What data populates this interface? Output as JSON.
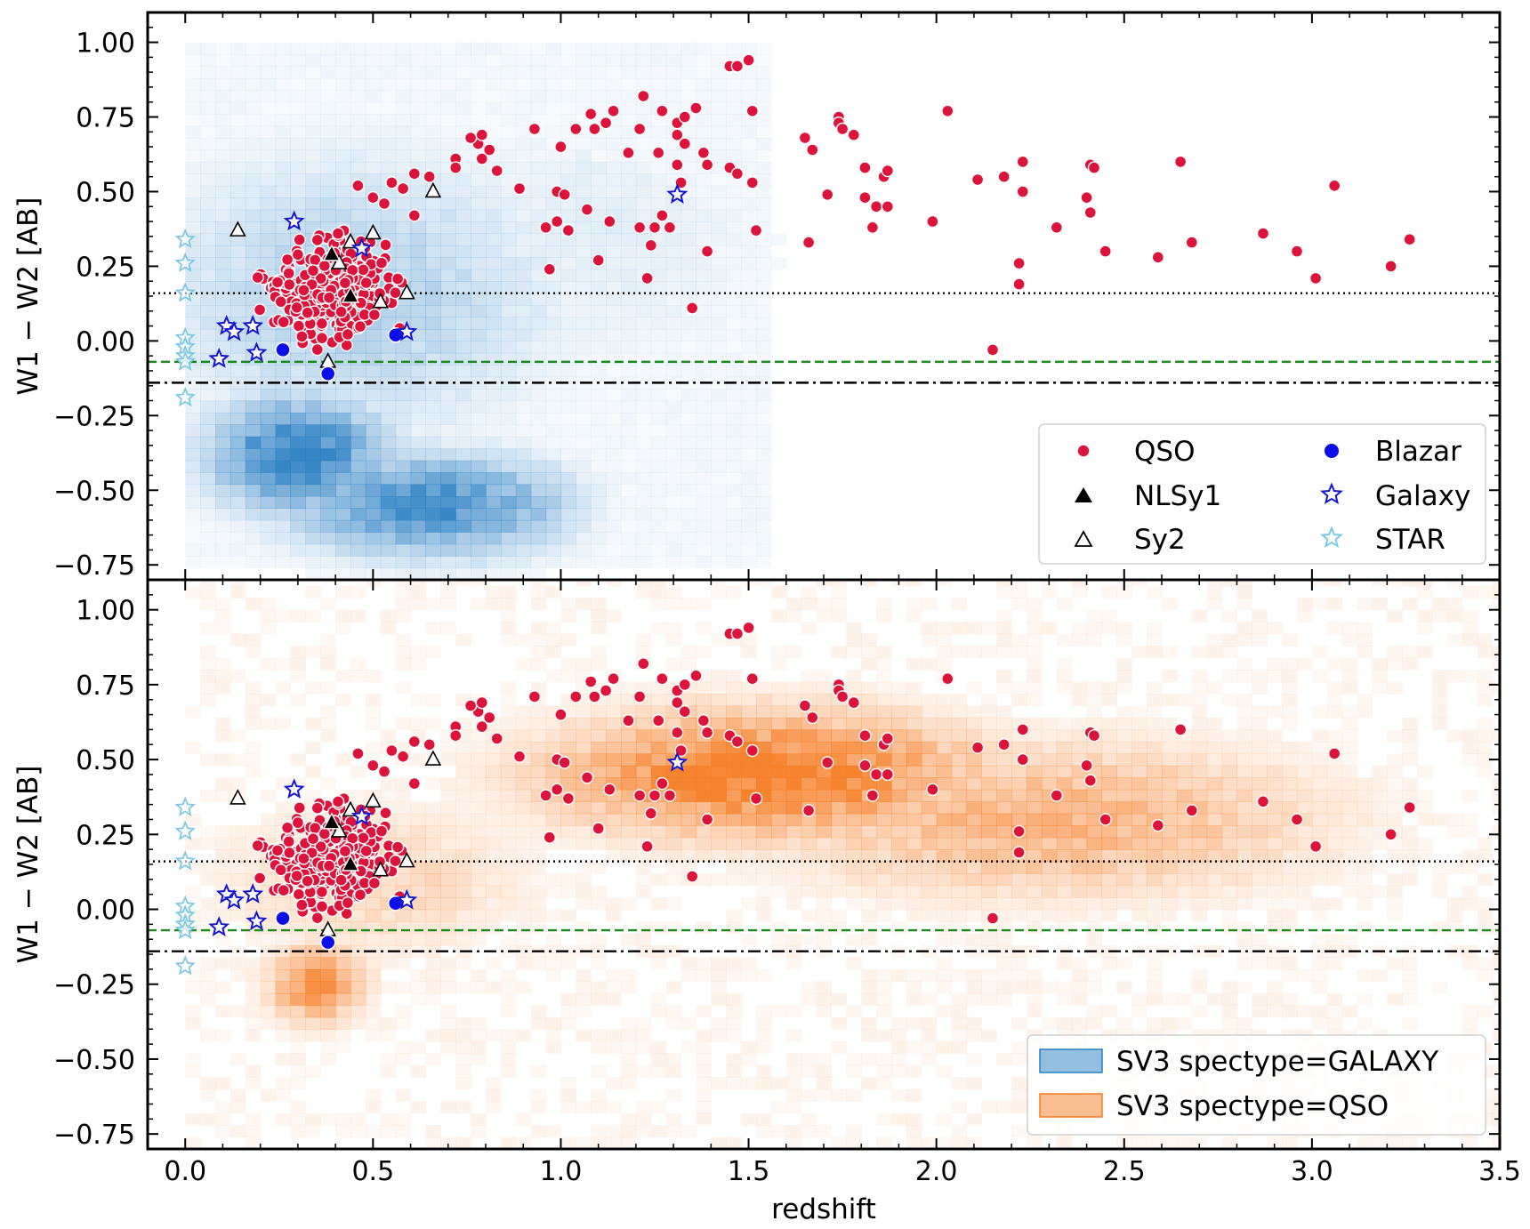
{
  "colors": {
    "galaxy_hist": "#2a7fc2",
    "qso_hist": "#f57d24",
    "qso_point": "#dc143c",
    "blazar": "#0b0ee8",
    "galaxy_star": "#1414d4",
    "star": "#7ec8e3",
    "green_line": "#1a8a1a"
  },
  "chart_data": [
    {
      "type": "scatter",
      "panel": "top",
      "background": "2D histogram of SV3 spectype=GALAXY",
      "xlim": [
        -0.1,
        3.5
      ],
      "ylim": [
        -0.8,
        1.1
      ],
      "xticks": [
        "0.0",
        "0.5",
        "1.0",
        "1.5",
        "2.0",
        "2.5",
        "3.0",
        "3.5"
      ],
      "yticks": [
        "1.00",
        "0.75",
        "0.50",
        "0.25",
        "0.00",
        "−0.25",
        "−0.50",
        "−0.75"
      ],
      "ylabel": "W1 − W2 [AB]",
      "reference_lines": [
        {
          "style": "dotted",
          "y": 0.16
        },
        {
          "style": "dashed",
          "y": -0.07
        },
        {
          "style": "dashdot",
          "y": -0.14
        }
      ],
      "legend": {
        "placement": "lower-right",
        "entries": [
          {
            "label": "QSO",
            "marker": "circle-red"
          },
          {
            "label": "Blazar",
            "marker": "circle-blue"
          },
          {
            "label": "NLSy1",
            "marker": "triangle-filled"
          },
          {
            "label": "Galaxy",
            "marker": "star-blue"
          },
          {
            "label": "Sy2",
            "marker": "triangle-open"
          },
          {
            "label": "STAR",
            "marker": "star-cyan"
          }
        ]
      }
    },
    {
      "type": "scatter",
      "panel": "bottom",
      "background": "2D histogram of SV3 spectype=QSO",
      "xlim": [
        -0.1,
        3.5
      ],
      "ylim": [
        -0.8,
        1.1
      ],
      "xticks": [
        "0.0",
        "0.5",
        "1.0",
        "1.5",
        "2.0",
        "2.5",
        "3.0",
        "3.5"
      ],
      "yticks": [
        "1.00",
        "0.75",
        "0.50",
        "0.25",
        "0.00",
        "−0.25",
        "−0.50",
        "−0.75"
      ],
      "xlabel": "redshift",
      "ylabel": "W1 − W2 [AB]",
      "reference_lines": [
        {
          "style": "dotted",
          "y": 0.16
        },
        {
          "style": "dashed",
          "y": -0.07
        },
        {
          "style": "dashdot",
          "y": -0.14
        }
      ],
      "legend": {
        "placement": "lower-right",
        "entries": [
          {
            "label": "SV3 spectype=GALAXY",
            "patch": "blue"
          },
          {
            "label": "SV3 spectype=QSO",
            "patch": "orange"
          }
        ]
      }
    }
  ],
  "points": {
    "qso_far": [
      [
        1.45,
        0.92
      ],
      [
        1.47,
        0.92
      ],
      [
        1.5,
        0.94
      ],
      [
        1.22,
        0.82
      ],
      [
        1.51,
        0.77
      ],
      [
        1.67,
        0.64
      ],
      [
        1.65,
        0.68
      ],
      [
        1.74,
        0.75
      ],
      [
        1.74,
        0.73
      ],
      [
        1.75,
        0.71
      ],
      [
        1.78,
        0.69
      ],
      [
        2.03,
        0.77
      ],
      [
        1.71,
        0.49
      ],
      [
        1.81,
        0.58
      ],
      [
        1.81,
        0.48
      ],
      [
        1.84,
        0.45
      ],
      [
        1.86,
        0.55
      ],
      [
        1.87,
        0.57
      ],
      [
        1.87,
        0.45
      ],
      [
        2.11,
        0.54
      ],
      [
        2.18,
        0.55
      ],
      [
        2.23,
        0.6
      ],
      [
        2.23,
        0.5
      ],
      [
        2.41,
        0.59
      ],
      [
        2.42,
        0.58
      ],
      [
        2.4,
        0.48
      ],
      [
        2.41,
        0.43
      ],
      [
        2.65,
        0.6
      ],
      [
        3.06,
        0.52
      ],
      [
        1.51,
        0.53
      ],
      [
        1.66,
        0.33
      ],
      [
        1.83,
        0.38
      ],
      [
        1.99,
        0.4
      ],
      [
        2.32,
        0.38
      ],
      [
        2.22,
        0.26
      ],
      [
        2.22,
        0.19
      ],
      [
        2.45,
        0.3
      ],
      [
        2.59,
        0.28
      ],
      [
        2.68,
        0.33
      ],
      [
        2.87,
        0.36
      ],
      [
        2.96,
        0.3
      ],
      [
        3.01,
        0.21
      ],
      [
        3.21,
        0.25
      ],
      [
        3.26,
        0.34
      ],
      [
        1.52,
        0.37
      ],
      [
        2.15,
        -0.03
      ],
      [
        1.35,
        0.11
      ],
      [
        1.12,
        0.73
      ],
      [
        1.21,
        0.71
      ],
      [
        1.14,
        0.77
      ],
      [
        1.27,
        0.77
      ],
      [
        1.31,
        0.73
      ],
      [
        1.33,
        0.75
      ],
      [
        1.36,
        0.78
      ],
      [
        1.08,
        0.76
      ],
      [
        1.09,
        0.71
      ],
      [
        1.31,
        0.69
      ],
      [
        1.04,
        0.71
      ],
      [
        1.18,
        0.63
      ],
      [
        1.26,
        0.63
      ],
      [
        1.33,
        0.66
      ],
      [
        1.38,
        0.63
      ],
      [
        1.31,
        0.59
      ],
      [
        1.32,
        0.53
      ],
      [
        1.39,
        0.59
      ],
      [
        1.45,
        0.58
      ],
      [
        1.47,
        0.56
      ],
      [
        0.99,
        0.5
      ],
      [
        1.01,
        0.49
      ],
      [
        1.07,
        0.44
      ],
      [
        1.13,
        0.4
      ],
      [
        1.21,
        0.38
      ],
      [
        1.25,
        0.38
      ],
      [
        1.27,
        0.42
      ],
      [
        1.24,
        0.32
      ],
      [
        1.23,
        0.21
      ],
      [
        1.02,
        0.37
      ],
      [
        0.99,
        0.4
      ],
      [
        0.96,
        0.38
      ],
      [
        0.97,
        0.24
      ],
      [
        1.1,
        0.27
      ],
      [
        1.29,
        0.38
      ],
      [
        1.39,
        0.3
      ],
      [
        1.0,
        0.65
      ],
      [
        0.93,
        0.71
      ],
      [
        0.89,
        0.51
      ],
      [
        0.83,
        0.57
      ],
      [
        0.79,
        0.61
      ],
      [
        0.78,
        0.66
      ],
      [
        0.76,
        0.68
      ],
      [
        0.79,
        0.69
      ],
      [
        0.81,
        0.64
      ],
      [
        0.72,
        0.61
      ],
      [
        0.65,
        0.55
      ],
      [
        0.72,
        0.58
      ],
      [
        0.61,
        0.56
      ],
      [
        0.58,
        0.51
      ],
      [
        0.55,
        0.53
      ],
      [
        0.46,
        0.52
      ],
      [
        0.5,
        0.48
      ],
      [
        0.53,
        0.46
      ],
      [
        0.61,
        0.42
      ]
    ],
    "qso_cluster_params": {
      "count": 380,
      "x_center": 0.38,
      "x_spread": 0.2,
      "y_center": 0.17,
      "y_spread": 0.17,
      "seed": 7
    },
    "blazar": [
      [
        0.26,
        -0.03
      ],
      [
        0.38,
        -0.11
      ],
      [
        0.56,
        0.02
      ]
    ],
    "nlsy1": [
      [
        0.39,
        0.29
      ],
      [
        0.44,
        0.15
      ]
    ],
    "sy2": [
      [
        0.14,
        0.37
      ],
      [
        0.44,
        0.33
      ],
      [
        0.5,
        0.36
      ],
      [
        0.41,
        0.26
      ],
      [
        0.52,
        0.13
      ],
      [
        0.59,
        0.16
      ],
      [
        0.66,
        0.5
      ],
      [
        0.38,
        -0.07
      ]
    ],
    "galaxy_stars": [
      [
        0.29,
        0.4
      ],
      [
        0.47,
        0.31
      ],
      [
        1.31,
        0.49
      ],
      [
        0.11,
        0.05
      ],
      [
        0.13,
        0.03
      ],
      [
        0.18,
        0.05
      ],
      [
        0.09,
        -0.06
      ],
      [
        0.19,
        -0.04
      ],
      [
        0.59,
        0.03
      ]
    ],
    "star_stars": [
      [
        0.0,
        0.34
      ],
      [
        0.0,
        0.26
      ],
      [
        0.0,
        0.16
      ],
      [
        0.0,
        0.01
      ],
      [
        0.0,
        -0.02
      ],
      [
        0.0,
        -0.05
      ],
      [
        0.0,
        -0.07
      ],
      [
        0.0,
        -0.19
      ]
    ]
  }
}
